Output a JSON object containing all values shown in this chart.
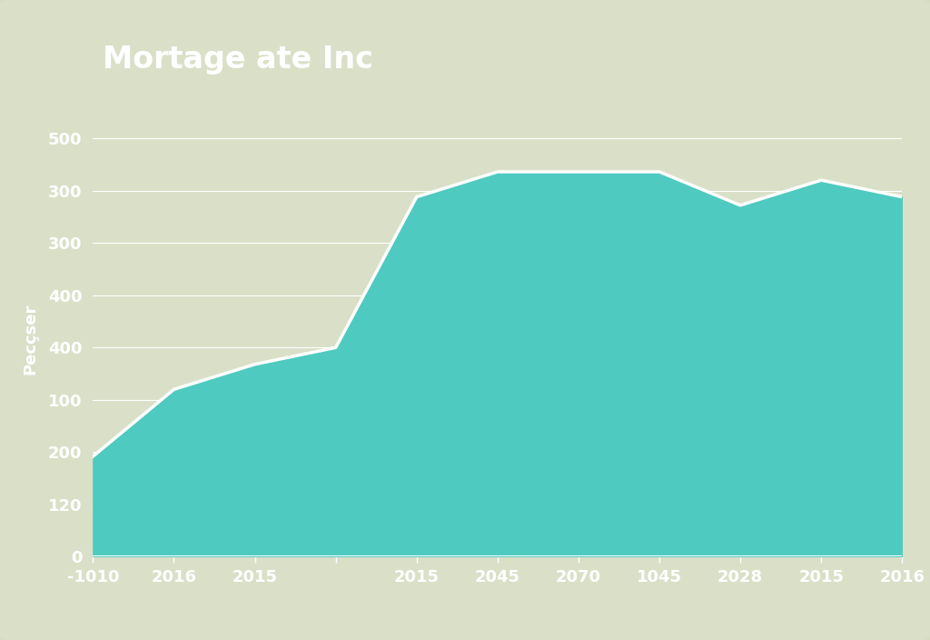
{
  "title": "Mortage ate Inc",
  "ylabel": "Pecçser",
  "x_labels": [
    "-1010",
    "2016",
    "2015",
    "",
    "2015",
    "2045",
    "2070",
    "1045",
    "2028",
    "2015",
    "2016"
  ],
  "y_tick_labels": [
    "0",
    "120",
    "200",
    "100",
    "400",
    "400",
    "300",
    "300",
    "500"
  ],
  "x_values": [
    0,
    1,
    2,
    3,
    4,
    5,
    6,
    7,
    8,
    9,
    10
  ],
  "y_values": [
    120,
    200,
    230,
    250,
    430,
    460,
    460,
    460,
    420,
    450,
    430
  ],
  "y_min": 0,
  "y_max": 520,
  "fill_color": "#4ECAC0",
  "line_color": "#FFFFFF",
  "background_outer": "#d6dcc0",
  "background_inner": "#dae0c8",
  "grid_color": "#FFFFFF",
  "title_color": "#FFFFFF",
  "tick_label_color": "#FFFFFF",
  "axis_label_color": "#FFFFFF",
  "title_fontsize": 24,
  "tick_fontsize": 13,
  "ylabel_fontsize": 13
}
